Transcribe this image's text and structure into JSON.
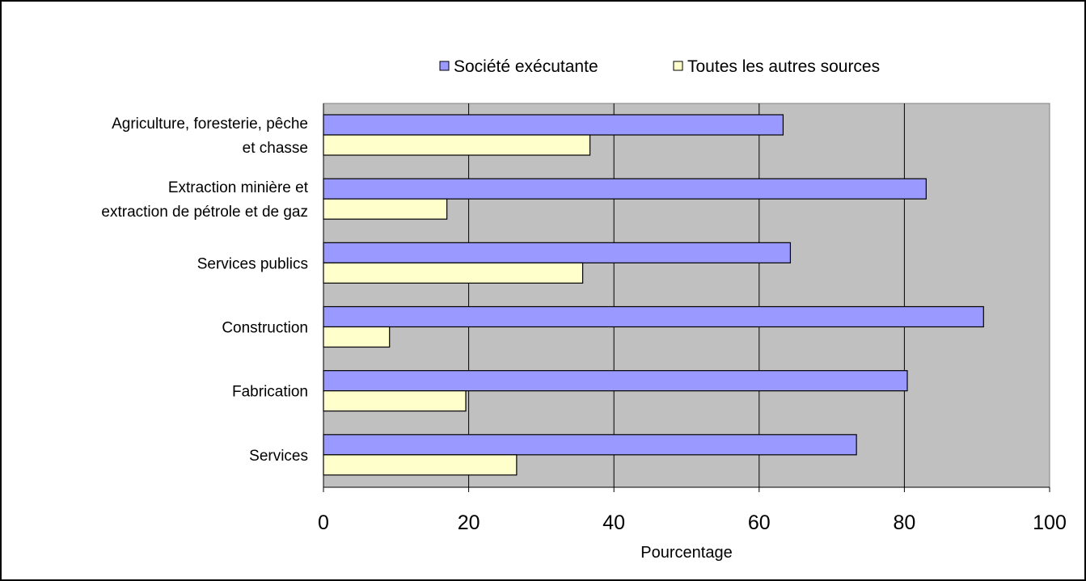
{
  "chart_data": {
    "type": "bar",
    "orientation": "horizontal",
    "categories": [
      [
        "Agriculture, foresterie, pêche",
        "et chasse"
      ],
      [
        "Extraction minière et",
        "extraction de pétrole et de gaz"
      ],
      [
        "Services publics"
      ],
      [
        "Construction"
      ],
      [
        "Fabrication"
      ],
      [
        "Services"
      ]
    ],
    "series": [
      {
        "name": "Société exécutante",
        "color": "#9999ff",
        "values": [
          63.3,
          83,
          64.3,
          90.9,
          80.4,
          73.4
        ]
      },
      {
        "name": "Toutes les autres sources",
        "color": "#ffffcc",
        "values": [
          36.7,
          17,
          35.7,
          9.1,
          19.6,
          26.6
        ]
      }
    ],
    "xlabel": "Pourcentage",
    "ylabel": "",
    "xlim": [
      0,
      100
    ],
    "xticks": [
      0,
      20,
      40,
      60,
      80,
      100
    ],
    "grid": true,
    "plot_background": "#c0c0c0",
    "legend_position": "top"
  }
}
